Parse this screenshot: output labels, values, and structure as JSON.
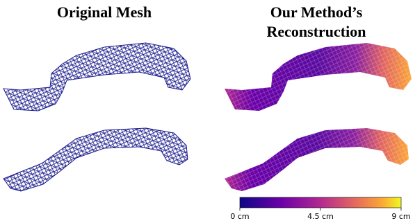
{
  "titles": {
    "left": "Original Mesh",
    "right": "Our Method’s Reconstruction"
  },
  "colorbar": {
    "lim": [
      0,
      9
    ],
    "ticks": [
      {
        "value": 0,
        "label": "0 cm"
      },
      {
        "value": 4.5,
        "label": "4.5 cm"
      },
      {
        "value": 9,
        "label": "9 cm"
      }
    ]
  }
}
